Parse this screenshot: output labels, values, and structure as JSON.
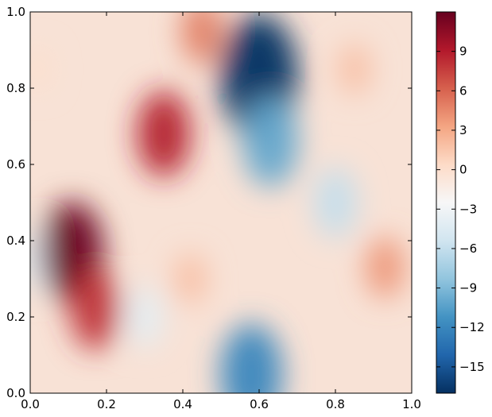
{
  "chart_data": {
    "type": "heatmap",
    "title": "",
    "xlabel": "",
    "ylabel": "",
    "xlim": [
      0.0,
      1.0
    ],
    "ylim": [
      0.0,
      1.0
    ],
    "x_ticks": [
      "0.0",
      "0.2",
      "0.4",
      "0.6",
      "0.8",
      "1.0"
    ],
    "y_ticks": [
      "0.0",
      "0.2",
      "0.4",
      "0.6",
      "0.8",
      "1.0"
    ],
    "x_tick_values": [
      0.0,
      0.2,
      0.4,
      0.6,
      0.8,
      1.0
    ],
    "y_tick_values": [
      0.0,
      0.2,
      0.4,
      0.6,
      0.8,
      1.0
    ],
    "colormap": "RdBu_r",
    "grid": false,
    "colorbar": {
      "range": [
        -17,
        12
      ],
      "tick_values": [
        9,
        6,
        3,
        0,
        -3,
        -6,
        -9,
        -12,
        -15
      ],
      "tick_labels": [
        "9",
        "6",
        "3",
        "0",
        "−3",
        "−6",
        "−9",
        "−12",
        "−15"
      ],
      "colors": [
        "#053061",
        "#2166ac",
        "#4393c3",
        "#92c5de",
        "#d1e5f0",
        "#f7f7f7",
        "#fddbc7",
        "#f4a582",
        "#d6604d",
        "#b2182b",
        "#67001f"
      ]
    },
    "features": [
      {
        "x": 0.6,
        "y": 0.83,
        "value": -17
      },
      {
        "x": 0.63,
        "y": 0.66,
        "value": -10
      },
      {
        "x": 0.8,
        "y": 0.5,
        "value": -6
      },
      {
        "x": 0.58,
        "y": 0.05,
        "value": -12
      },
      {
        "x": 0.3,
        "y": 0.2,
        "value": -4
      },
      {
        "x": 0.02,
        "y": 0.35,
        "value": -4
      },
      {
        "x": 0.11,
        "y": 0.37,
        "value": 12
      },
      {
        "x": 0.17,
        "y": 0.22,
        "value": 8
      },
      {
        "x": 0.35,
        "y": 0.68,
        "value": 9
      },
      {
        "x": 0.45,
        "y": 0.95,
        "value": 5
      },
      {
        "x": 0.85,
        "y": 0.85,
        "value": 2
      },
      {
        "x": 0.93,
        "y": 0.33,
        "value": 4
      },
      {
        "x": 0.02,
        "y": 0.85,
        "value": 0
      },
      {
        "x": 0.42,
        "y": 0.3,
        "value": 2
      }
    ]
  }
}
